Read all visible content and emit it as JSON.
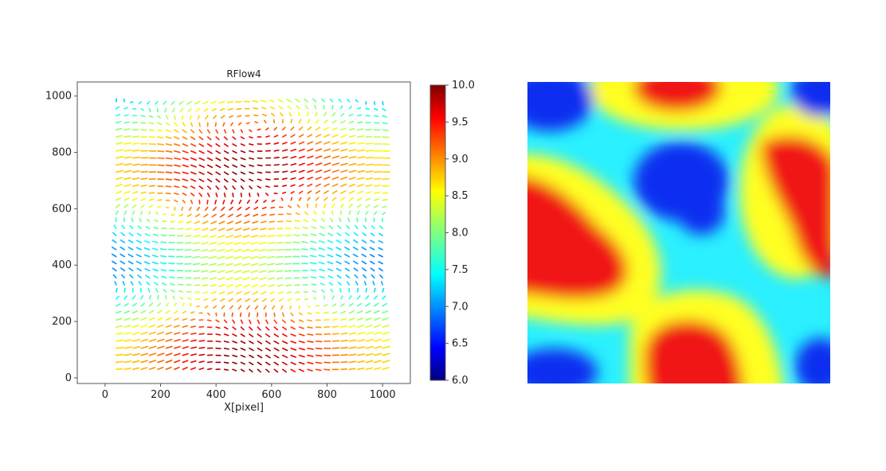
{
  "chart_data": [
    {
      "type": "quiver",
      "title": "RFlow4",
      "xlabel": "X[pixel]",
      "ylabel": "",
      "xlim": [
        -100,
        1100
      ],
      "ylim": [
        -20,
        1050
      ],
      "xticks": [
        0,
        200,
        400,
        600,
        800,
        1000
      ],
      "yticks": [
        0,
        200,
        400,
        600,
        800,
        1000
      ],
      "grid": false,
      "arrows": {
        "x_start": 40,
        "x_end": 1000,
        "x_step": 30,
        "y_start": 30,
        "y_end": 995,
        "y_step": 25
      },
      "colorbar": {
        "min": 6.0,
        "max": 10.0,
        "ticks": [
          "6.0",
          "6.5",
          "7.0",
          "7.5",
          "8.0",
          "8.5",
          "9.0",
          "9.5",
          "10.0"
        ],
        "colormap": "jet"
      }
    },
    {
      "type": "heatmap",
      "colormap": "bands: blue-cyan-yellow-red",
      "colors": {
        "blue": "#0a2ff0",
        "cyan": "#2af0ff",
        "yellow": "#ffff22",
        "red": "#f01818"
      },
      "axes": "off"
    }
  ]
}
